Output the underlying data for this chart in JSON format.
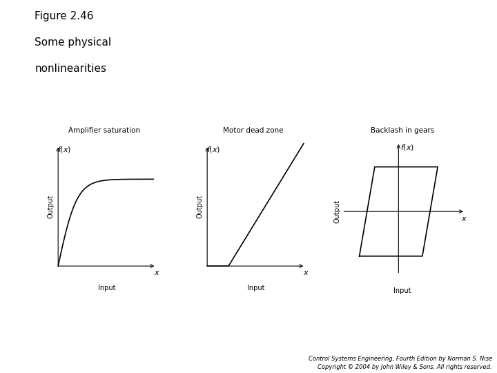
{
  "title_line1": "Figure 2.46",
  "title_line2": "Some physical",
  "title_line3": "nonlinearities",
  "subtitle1": "Amplifier saturation",
  "subtitle2": "Motor dead zone",
  "subtitle3": "Backlash in gears",
  "output_label": "Output",
  "input_label": "Input",
  "footer_line1": "Control Systems Engineering, Fourth Edition by Norman S. Nise",
  "footer_line2": "Copyright © 2004 by John Wiley & Sons. All rights reserved.",
  "bg_color": "#ffffff",
  "line_color": "#000000",
  "font_color": "#000000",
  "title_fontsize": 11,
  "subtitle_fontsize": 7.5,
  "label_fontsize": 7,
  "italic_fontsize": 8,
  "footer_fontsize": 6
}
